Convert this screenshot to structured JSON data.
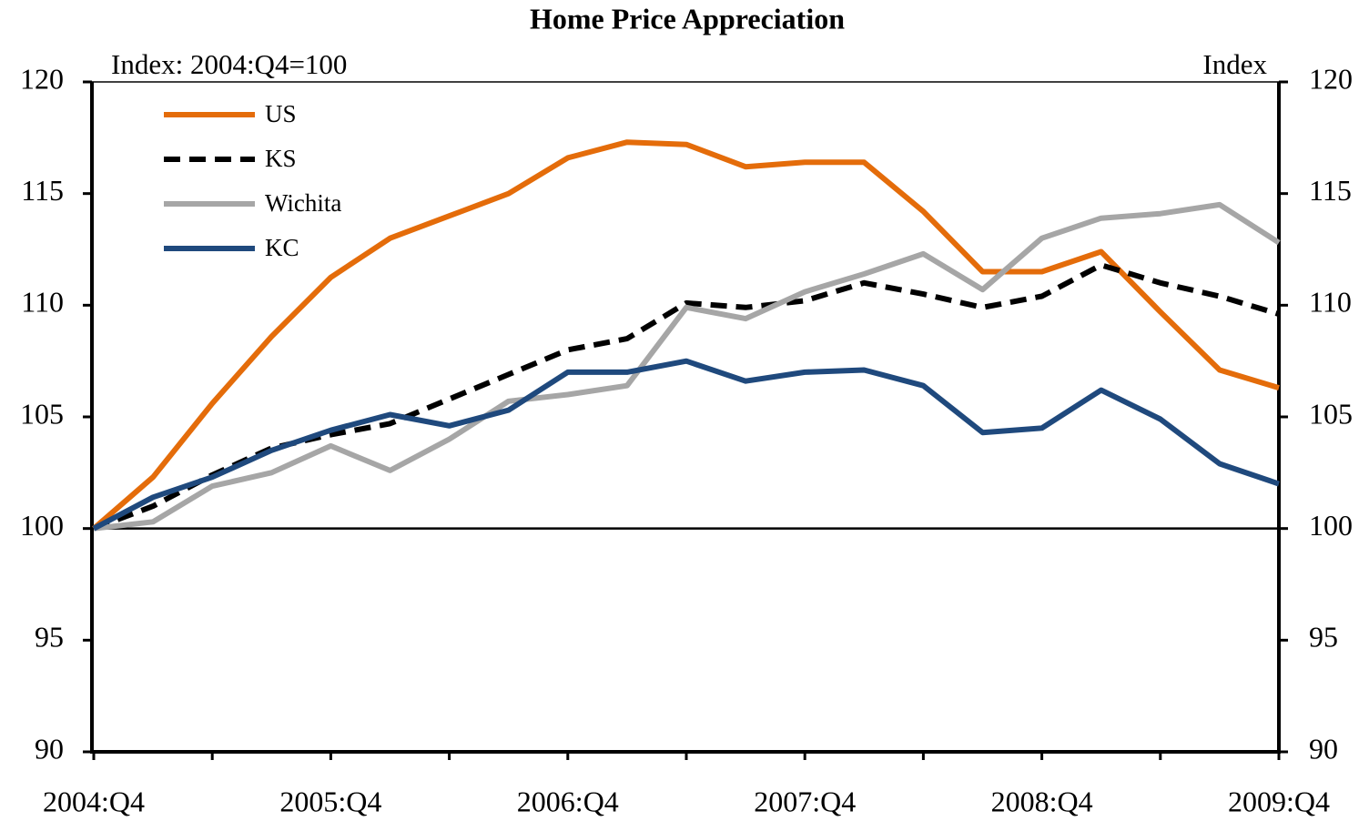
{
  "chart_data": {
    "type": "line",
    "title": "Home Price Appreciation",
    "y_label": "Index: 2004:Q4=100",
    "y2_label": "Index",
    "categories": [
      "2004:Q4",
      null,
      null,
      null,
      "2005:Q4",
      null,
      null,
      null,
      "2006:Q4",
      null,
      null,
      null,
      "2007:Q4",
      null,
      null,
      null,
      "2008:Q4",
      null,
      null,
      null,
      "2009:Q4"
    ],
    "series": [
      {
        "name": "US",
        "color": "#e46c0a",
        "style": "solid",
        "values": [
          100,
          102.3,
          105.6,
          108.6,
          111.25,
          113.0,
          114.0,
          115.0,
          116.6,
          117.3,
          117.2,
          116.2,
          116.4,
          116.4,
          114.2,
          111.5,
          111.5,
          112.4,
          109.7,
          107.1,
          106.3
        ]
      },
      {
        "name": "KS",
        "color": "#000000",
        "style": "dashed",
        "values": [
          100,
          101.0,
          102.4,
          103.6,
          104.2,
          104.7,
          105.8,
          106.9,
          108.0,
          108.5,
          110.1,
          109.9,
          110.2,
          111.0,
          110.5,
          109.9,
          110.4,
          111.8,
          111.0,
          110.4,
          109.6
        ]
      },
      {
        "name": "Wichita",
        "color": "#a6a6a6",
        "style": "solid",
        "values": [
          100,
          100.3,
          101.9,
          102.5,
          103.7,
          102.6,
          104.0,
          105.7,
          106.0,
          106.4,
          109.9,
          109.4,
          110.6,
          111.4,
          112.3,
          110.7,
          113.0,
          113.9,
          114.1,
          114.5,
          112.8
        ]
      },
      {
        "name": "KC",
        "color": "#1f497d",
        "style": "solid",
        "values": [
          100,
          101.4,
          102.3,
          103.5,
          104.4,
          105.1,
          104.6,
          105.3,
          107.0,
          107.0,
          107.5,
          106.6,
          107.0,
          107.1,
          106.4,
          104.3,
          104.5,
          106.2,
          104.9,
          102.9,
          102.0
        ]
      }
    ],
    "ylim": [
      90,
      120
    ],
    "yticks": [
      90,
      95,
      100,
      105,
      110,
      115,
      120
    ],
    "y2lim": [
      90,
      120
    ],
    "y2ticks": [
      90,
      95,
      100,
      105,
      110,
      115,
      120
    ],
    "baseline": 100,
    "legend": "upper left",
    "grid": false
  }
}
